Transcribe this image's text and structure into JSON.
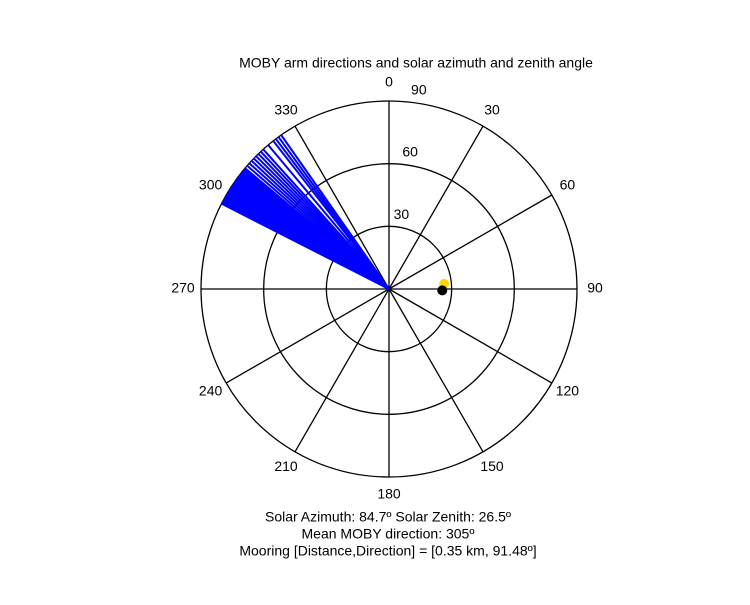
{
  "chart_data": {
    "type": "polar",
    "title": "MOBY arm directions and solar azimuth and zenith angle",
    "rlim": [
      0,
      90
    ],
    "rticks": [
      30,
      60,
      90
    ],
    "thetaticks": [
      0,
      30,
      60,
      90,
      120,
      150,
      180,
      210,
      240,
      270,
      300,
      330
    ],
    "grid_color": "#000000",
    "series": [
      {
        "color": "#0000ff",
        "theta": [
          297,
          297.5,
          298,
          298.5,
          299,
          299.5,
          300,
          300.5,
          301,
          301.5,
          302,
          302.5,
          303,
          303.5,
          304,
          304.5,
          305,
          305.5,
          306,
          306.5,
          307,
          307.5,
          308,
          308.5,
          309,
          309.5,
          310,
          311,
          312,
          313,
          314,
          315,
          316,
          317,
          318,
          320,
          322,
          323,
          324,
          325
        ]
      }
    ],
    "points": [
      {
        "color": "#ffd700",
        "theta": 84.7,
        "r": 26.5
      },
      {
        "color": "#000000",
        "theta": 91.5,
        "r": 25.5
      }
    ],
    "annotations": [
      "Solar Azimuth: 84.7º    Solar Zenith: 26.5º",
      "Mean MOBY direction: 305º",
      "Mooring [Distance,Direction] = [0.35 km, 91.48º]"
    ]
  }
}
